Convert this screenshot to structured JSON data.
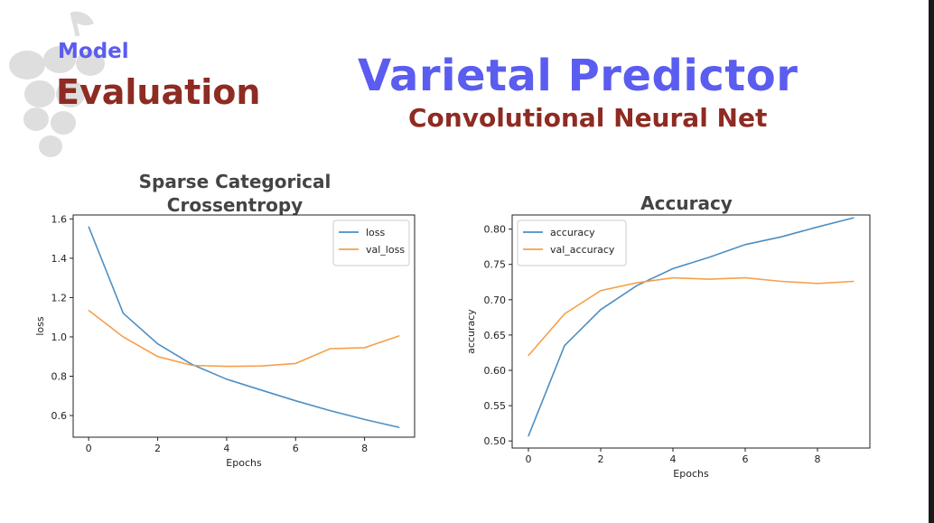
{
  "header": {
    "tag_small": "Model",
    "tag_large": "Evaluation",
    "title": "Varietal Predictor",
    "subtitle": "Convolutional Neural Net"
  },
  "decoration": {
    "icon": "grape-cluster-icon",
    "color": "#dedede"
  },
  "colors": {
    "blue": "#5b5cf0",
    "maroon": "#8e2b22",
    "series_blue": "#4c8fc4",
    "series_orange": "#f5a04c"
  },
  "chart_data": [
    {
      "type": "line",
      "title": "Sparse Categorical Crossentropy",
      "title_lines": [
        "Sparse Categorical",
        "Crossentropy"
      ],
      "xlabel": "Epochs",
      "ylabel": "loss",
      "xlim": [
        -0.45,
        9.45
      ],
      "ylim": [
        0.49,
        1.62
      ],
      "xticks": [
        0,
        2,
        4,
        6,
        8
      ],
      "yticks": [
        0.6,
        0.8,
        1.0,
        1.2,
        1.4,
        1.6
      ],
      "ytick_labels": [
        "0.6",
        "0.8",
        "1.0",
        "1.2",
        "1.4",
        "1.6"
      ],
      "legend_position": "top-right",
      "grid": false,
      "x": [
        0,
        1,
        2,
        3,
        4,
        5,
        6,
        7,
        8,
        9
      ],
      "series": [
        {
          "name": "loss",
          "color": "#4c8fc4",
          "values": [
            1.56,
            1.12,
            0.965,
            0.86,
            0.785,
            0.73,
            0.675,
            0.625,
            0.58,
            0.54
          ]
        },
        {
          "name": "val_loss",
          "color": "#f5a04c",
          "values": [
            1.135,
            1.0,
            0.9,
            0.855,
            0.85,
            0.852,
            0.865,
            0.94,
            0.945,
            1.005
          ]
        }
      ]
    },
    {
      "type": "line",
      "title": "Accuracy",
      "title_lines": [
        "Accuracy"
      ],
      "xlabel": "Epochs",
      "ylabel": "accuracy",
      "xlim": [
        -0.45,
        9.45
      ],
      "ylim": [
        0.49,
        0.82
      ],
      "xticks": [
        0,
        2,
        4,
        6,
        8
      ],
      "yticks": [
        0.5,
        0.55,
        0.6,
        0.65,
        0.7,
        0.75,
        0.8
      ],
      "ytick_labels": [
        "0.50",
        "0.55",
        "0.60",
        "0.65",
        "0.70",
        "0.75",
        "0.80"
      ],
      "legend_position": "top-left",
      "grid": false,
      "x": [
        0,
        1,
        2,
        3,
        4,
        5,
        6,
        7,
        8,
        9
      ],
      "series": [
        {
          "name": "accuracy",
          "color": "#4c8fc4",
          "values": [
            0.507,
            0.635,
            0.686,
            0.72,
            0.744,
            0.76,
            0.778,
            0.789,
            0.803,
            0.816
          ]
        },
        {
          "name": "val_accuracy",
          "color": "#f5a04c",
          "values": [
            0.621,
            0.68,
            0.713,
            0.724,
            0.731,
            0.729,
            0.731,
            0.726,
            0.723,
            0.726
          ]
        }
      ]
    }
  ]
}
